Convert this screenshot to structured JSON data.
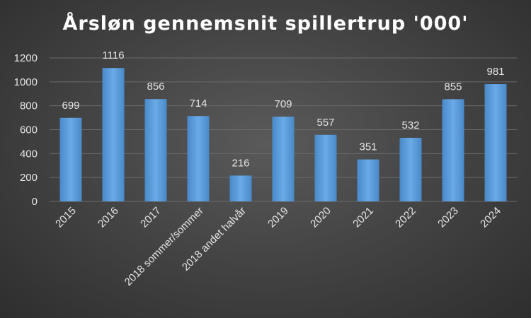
{
  "chart_data": {
    "type": "bar",
    "title": "Årsløn gennemsnit spillertrup '000'",
    "xlabel": "",
    "ylabel": "",
    "ylim": [
      0,
      1200
    ],
    "yticks": [
      0,
      200,
      400,
      600,
      800,
      1000,
      1200
    ],
    "grid": true,
    "legend": "none",
    "bar_color": "#5b9bd5",
    "categories": [
      "2015",
      "2016",
      "2017",
      "2018 sommer/sommer",
      "2018 andet halvår",
      "2019",
      "2020",
      "2021",
      "2022",
      "2023",
      "2024"
    ],
    "values": [
      699,
      1116,
      856,
      714,
      216,
      709,
      557,
      351,
      532,
      855,
      981
    ]
  }
}
